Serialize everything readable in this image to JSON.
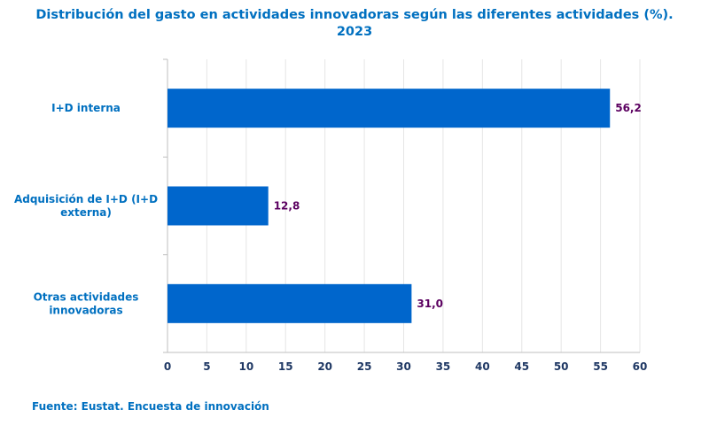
{
  "chart_data": {
    "type": "bar",
    "orientation": "horizontal",
    "title_line1": "Distribución del gasto en actividades innovadoras según las diferentes actividades (%).",
    "title_line2": "2023",
    "categories": [
      [
        "I+D interna"
      ],
      [
        "Adquisición de I+D (I+D",
        "externa)"
      ],
      [
        "Otras actividades",
        "innovadoras"
      ]
    ],
    "values": [
      56.2,
      12.8,
      31.0
    ],
    "value_labels": [
      "56,2",
      "12,8",
      "31,0"
    ],
    "xlim": [
      0,
      60
    ],
    "xticks": [
      0,
      5,
      10,
      15,
      20,
      25,
      30,
      35,
      40,
      45,
      50,
      55,
      60
    ],
    "grid": true,
    "bar_color": "#0066cc",
    "label_color": "#5b0060",
    "category_color": "#0070c0",
    "tick_color": "#1f3864"
  },
  "source": "Fuente: Eustat. Encuesta de innovación"
}
